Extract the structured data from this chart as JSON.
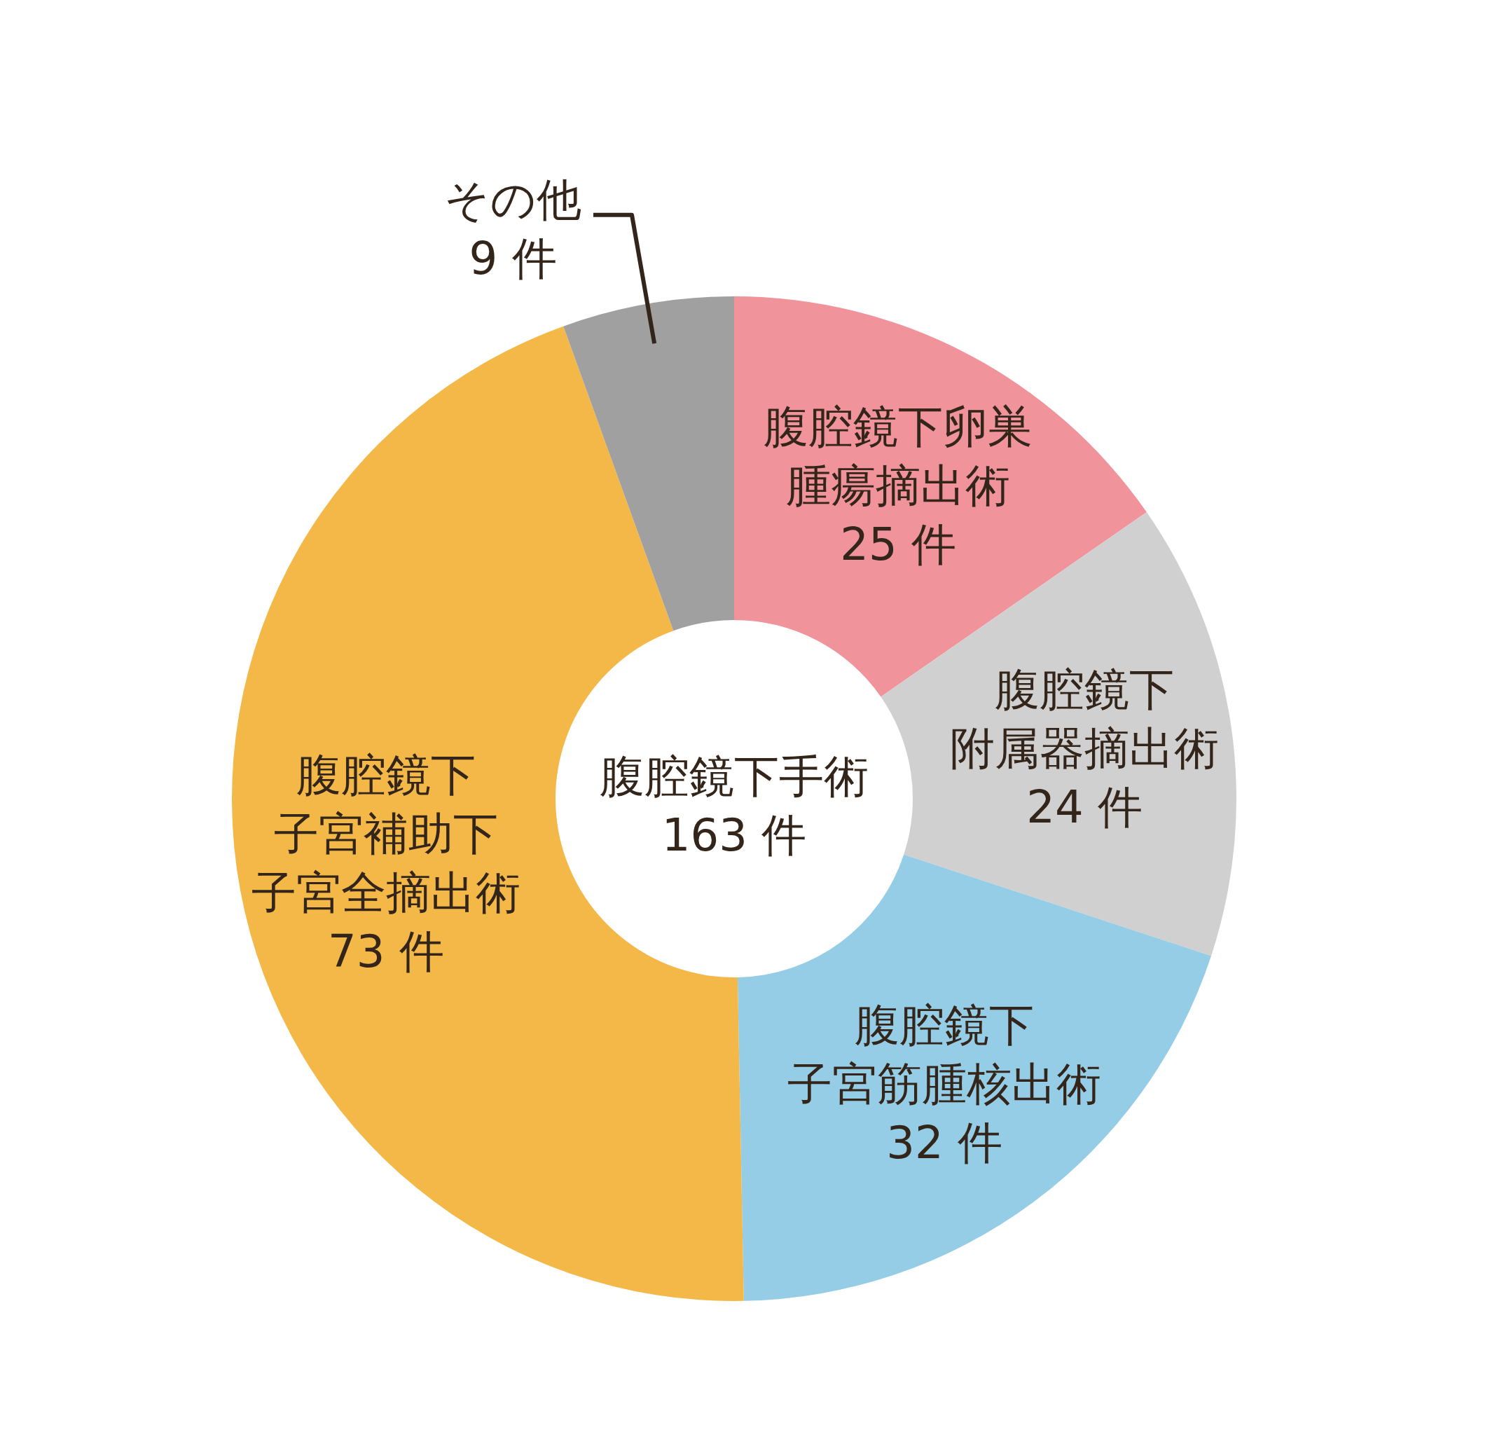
{
  "chart_data": {
    "type": "donut",
    "title": "腹腔鏡下手術",
    "subtitle": "163 件",
    "categories": [
      "腹腔鏡下卵巣腫瘍摘出術",
      "腹腔鏡下附属器摘出術",
      "腹腔鏡下子宮筋腫核出術",
      "腹腔鏡下子宮補助下子宮全摘出術",
      "その他"
    ],
    "values": [
      25,
      24,
      32,
      73,
      9
    ],
    "colors": [
      "#f0939b",
      "#d0d0d0",
      "#95cde6",
      "#f3b848",
      "#a0a0a0"
    ],
    "value_labels": [
      "25 件",
      "24 件",
      "32 件",
      "73 件",
      "9 件"
    ]
  }
}
